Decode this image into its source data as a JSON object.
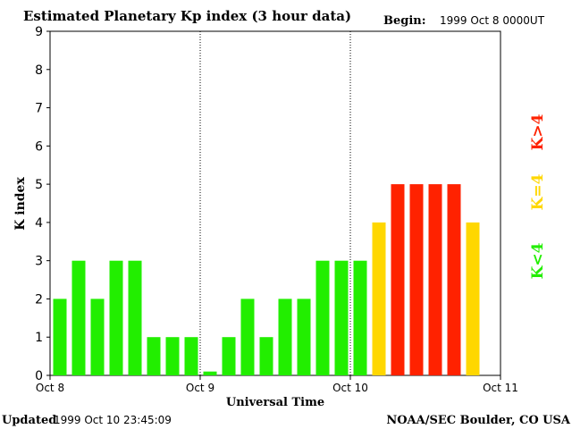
{
  "chart_data": {
    "type": "bar",
    "title": "Estimated Planetary Kp index (3 hour data)",
    "begin_label": "Begin:",
    "begin_value": "1999 Oct 8 0000UT",
    "ylabel": "K index",
    "xlabel": "Universal Time",
    "ylim": [
      0,
      9
    ],
    "yticks": [
      "0",
      "1",
      "2",
      "3",
      "4",
      "5",
      "6",
      "7",
      "8",
      "9"
    ],
    "xticks": [
      "Oct 8",
      "Oct 9",
      "Oct 10",
      "Oct 11"
    ],
    "values": [
      2,
      3,
      2,
      3,
      3,
      1,
      1,
      1,
      0.1,
      1,
      2,
      1,
      2,
      2,
      3,
      3,
      3,
      4,
      5,
      5,
      5,
      5,
      4
    ],
    "colors": {
      "low": "#22ee00",
      "equal": "#ffd700",
      "high": "#ff2200"
    },
    "legend": [
      {
        "label": "K<4",
        "level": "low"
      },
      {
        "label": "K=4",
        "level": "equal"
      },
      {
        "label": "K>4",
        "level": "high"
      }
    ]
  },
  "footer": {
    "updated_label": "Updated",
    "updated_value": "1999 Oct 10 23:45:09",
    "source": "NOAA/SEC Boulder, CO USA"
  }
}
